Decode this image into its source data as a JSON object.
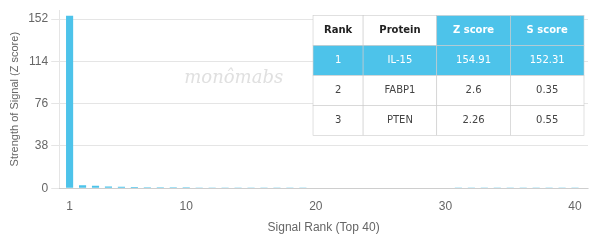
{
  "chart_data": {
    "type": "bar",
    "x_label": "Signal Rank (Top 40)",
    "y_label": "Strength of Signal (Z score)",
    "x": [
      1,
      2,
      3,
      4,
      5,
      6,
      7,
      8,
      9,
      10,
      11,
      12,
      13,
      14,
      15,
      16,
      17,
      18,
      19,
      20,
      21,
      22,
      23,
      24,
      25,
      26,
      27,
      28,
      29,
      30,
      31,
      32,
      33,
      34,
      35,
      36,
      37,
      38,
      39,
      40
    ],
    "values": [
      154.91,
      2.6,
      2.26,
      1.5,
      1.2,
      1.0,
      0.9,
      0.85,
      0.8,
      0.75,
      0.7,
      0.68,
      0.65,
      0.63,
      0.61,
      0.59,
      0.57,
      0.55,
      0.53,
      0.51,
      0.49,
      0.47,
      0.45,
      0.43,
      0.41,
      0.39,
      0.37,
      0.35,
      0.33,
      0.31,
      0.29,
      0.27,
      0.25,
      0.23,
      0.21,
      0.19,
      0.17,
      0.15,
      0.13,
      0.11
    ],
    "color": "#4dc3ea",
    "xlim": [
      0.2,
      41
    ],
    "xticks": [
      1,
      10,
      20,
      30,
      40
    ],
    "ylim": [
      0,
      160
    ],
    "yticks": [
      0,
      38,
      76,
      114,
      152
    ],
    "grid": "y",
    "annotations": [
      "monômabs"
    ],
    "table": {
      "header": [
        "Rank",
        "Protein",
        "Z score",
        "S score"
      ],
      "rows": [
        [
          "1",
          "IL-15",
          "154.91",
          "152.31"
        ],
        [
          "2",
          "FABP1",
          "2.6",
          "0.35"
        ],
        [
          "3",
          "PTEN",
          "2.26",
          "0.55"
        ]
      ]
    }
  }
}
